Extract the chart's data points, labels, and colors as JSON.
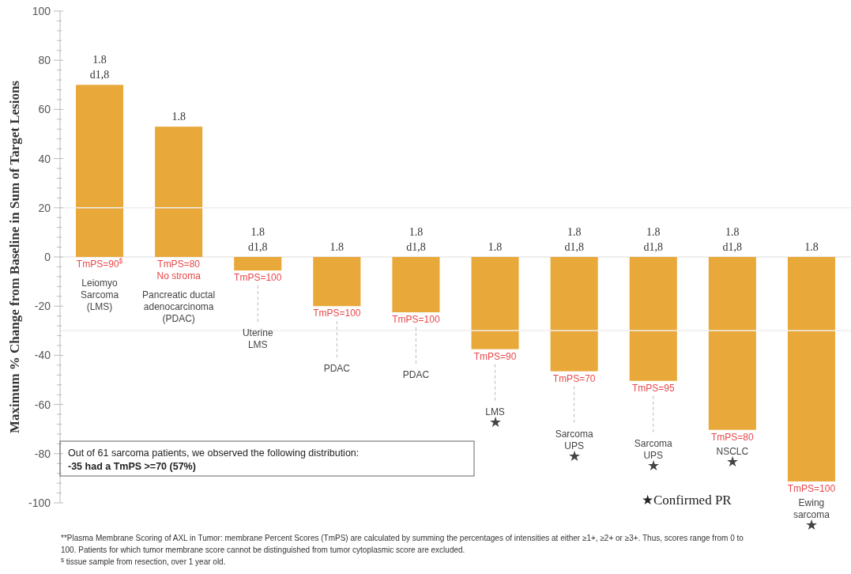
{
  "chart_data": {
    "type": "bar",
    "ylabel": "Maximum % Change from Baseline in Sum of Target Lesions",
    "categories": [
      "Leiomyo\nSarcoma\n(LMS)",
      "Pancreatic ductal\nadenocarcinoma\n(PDAC)",
      "Uterine\nLMS",
      "PDAC",
      "PDAC",
      "LMS\n★",
      "Sarcoma\nUPS\n★",
      "Sarcoma\nUPS\n★",
      "NSCLC\n★",
      "Ewing\nsarcoma\n★"
    ],
    "values": [
      70,
      53,
      -5.5,
      -20,
      -22.5,
      -37.5,
      -46.5,
      -50.4,
      -70.3,
      -91.3
    ],
    "color": "#e9a83a",
    "ylim": [
      -100,
      100
    ],
    "yticks": [
      -100,
      {
        "value": -96,
        "label": null
      },
      {
        "value": -92,
        "label": null
      },
      {
        "value": -88,
        "label": null
      },
      {
        "value": -84,
        "label": null
      },
      -80,
      {
        "value": -76,
        "label": null
      },
      {
        "value": -72,
        "label": null
      },
      {
        "value": -68,
        "label": null
      },
      {
        "value": -64,
        "label": null
      },
      -60,
      {
        "value": -56,
        "label": null
      },
      {
        "value": -52,
        "label": null
      },
      {
        "value": -48,
        "label": null
      },
      {
        "value": -44,
        "label": null
      },
      -40,
      {
        "value": -36,
        "label": null
      },
      {
        "value": -32,
        "label": null
      },
      {
        "value": -28,
        "label": null
      },
      {
        "value": -24,
        "label": null
      },
      -20,
      {
        "value": -16,
        "label": null
      },
      {
        "value": -12,
        "label": null
      },
      {
        "value": -8,
        "label": null
      },
      {
        "value": -4,
        "label": null
      },
      0,
      {
        "value": 4,
        "label": null
      },
      {
        "value": 8,
        "label": null
      },
      {
        "value": 12,
        "label": null
      },
      {
        "value": 16,
        "label": null
      },
      20,
      {
        "value": 24,
        "label": null
      },
      {
        "value": 28,
        "label": null
      },
      {
        "value": 32,
        "label": null
      },
      {
        "value": 36,
        "label": null
      },
      40,
      {
        "value": 44,
        "label": null
      },
      {
        "value": 48,
        "label": null
      },
      {
        "value": 52,
        "label": null
      },
      {
        "value": 56,
        "label": null
      },
      60,
      {
        "value": 64,
        "label": null
      },
      {
        "value": 68,
        "label": null
      },
      {
        "value": 72,
        "label": null
      },
      {
        "value": 76,
        "label": null
      },
      80,
      {
        "value": 84,
        "label": null
      },
      {
        "value": 88,
        "label": null
      },
      {
        "value": 92,
        "label": null
      },
      {
        "value": 96,
        "label": null
      },
      100
    ],
    "ref_lines": [
      {
        "axis": "y",
        "value": 20,
        "color": "#eeeeee"
      },
      {
        "axis": "y",
        "value": -30,
        "color": "#eeeeee"
      }
    ],
    "annotations": [
      "1.8\nd1,8",
      "TmPS=90$^{$}$",
      "1.8",
      "TmPS=80\nNo stroma",
      "1.8\nd1,8",
      "TmPS=100",
      "1.8",
      "TmPS=100",
      "1.8\nd1,8",
      "TmPS=100",
      "1.8",
      "TmPS=90",
      "1.8\nd1,8",
      "TmPS=70",
      "1.8\nd1,8",
      "TmPS=95",
      "1.8\nd1,8",
      "TmPS=80",
      "1.8",
      "TmPS=100",
      "Out of 61 sarcoma patients, we observed the following distribution:\n-35 had a TmPS >=70 (57%)",
      "★Confirmed PR",
      "**Plasma Membrane Scoring of AXL in Tumor: membrane Percent Scores (TmPS) are calculated by summing the percentages of intensities at either ≥1+, ≥2+ or ≥3+. Thus, scores range from 0 to 100. Patients for which tumor membrane score cannot be distinguished from tumor cytoplasmic score are excluded.",
      "$^{$}$ tissue sample from resection, over 1 year old."
    ]
  }
}
